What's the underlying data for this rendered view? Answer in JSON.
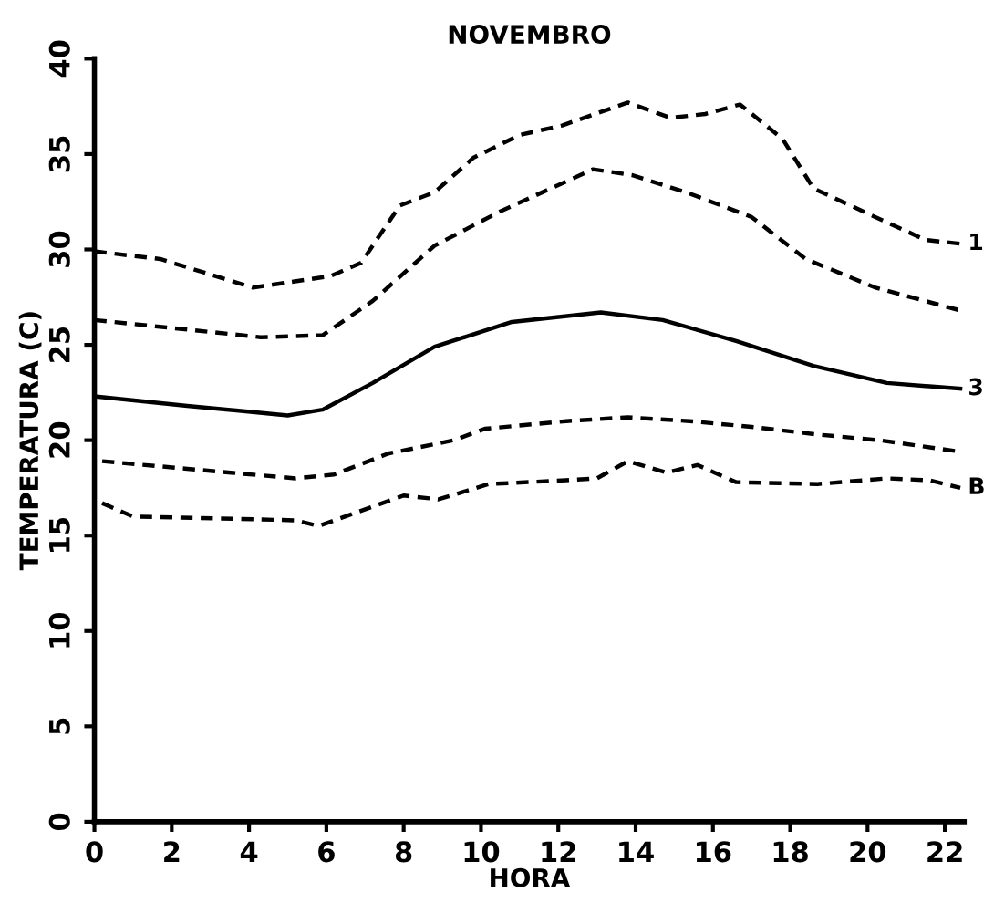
{
  "chart_data": {
    "type": "line",
    "title": "NOVEMBRO",
    "xlabel": "HORA",
    "ylabel": "TEMPERATURA (C)",
    "xlim": [
      0,
      22.5
    ],
    "xticks": [
      0,
      2,
      4,
      6,
      8,
      10,
      12,
      14,
      16,
      18,
      20,
      22
    ],
    "ylim": [
      0,
      40
    ],
    "yticks": [
      0,
      5,
      10,
      15,
      20,
      25,
      30,
      35,
      40
    ],
    "grid": false,
    "legend": false,
    "series": [
      {
        "name": "1",
        "color": "#000000",
        "line_style": "dashed",
        "x": [
          0,
          1.7,
          4.1,
          6.1,
          6.9,
          7.9,
          8.8,
          9.8,
          11,
          12.1,
          13.8,
          14.9,
          15.8,
          16.7,
          17.8,
          18.6,
          20.2,
          21.5,
          22.4
        ],
        "values": [
          29.9,
          29.5,
          28.0,
          28.6,
          29.3,
          32.3,
          33.0,
          34.8,
          36.0,
          36.5,
          37.7,
          36.9,
          37.1,
          37.6,
          35.8,
          33.2,
          31.7,
          30.5,
          30.3
        ]
      },
      {
        "color": "#000000",
        "line_style": "dashed",
        "x": [
          0,
          2.4,
          4.3,
          5.9,
          7.2,
          8.8,
          10.5,
          12.9,
          13.9,
          15.3,
          17,
          18.4,
          20.2,
          22.4
        ],
        "values": [
          26.3,
          25.8,
          25.4,
          25.5,
          27.3,
          30.2,
          32.0,
          34.2,
          33.9,
          33.0,
          31.7,
          29.5,
          28.0,
          26.8
        ]
      },
      {
        "name": "3",
        "color": "#000000",
        "line_style": "solid",
        "x": [
          0,
          2.4,
          5,
          5.9,
          7.2,
          8.8,
          10.8,
          13.1,
          14.7,
          16.6,
          18.6,
          20.5,
          22.4
        ],
        "values": [
          22.3,
          21.8,
          21.3,
          21.6,
          23.0,
          24.9,
          26.2,
          26.7,
          26.3,
          25.2,
          23.9,
          23.0,
          22.7
        ]
      },
      {
        "color": "#000000",
        "line_style": "dashed",
        "x": [
          0.2,
          2.4,
          5.2,
          6.2,
          7.6,
          9.3,
          10.1,
          12.2,
          13.8,
          15.4,
          17,
          18.7,
          20.3,
          22.4
        ],
        "values": [
          18.9,
          18.5,
          18.0,
          18.2,
          19.3,
          20.0,
          20.6,
          21.0,
          21.2,
          21.0,
          20.7,
          20.3,
          20.0,
          19.4
        ]
      },
      {
        "name": "B",
        "color": "#000000",
        "line_style": "dashed",
        "x": [
          0.2,
          1,
          3.2,
          5.2,
          5.8,
          8,
          8.9,
          10.2,
          12.2,
          13,
          13.8,
          14.8,
          15.6,
          16.6,
          18.7,
          20.5,
          21.6,
          22.4
        ],
        "values": [
          16.7,
          16.0,
          15.9,
          15.8,
          15.5,
          17.1,
          16.9,
          17.7,
          17.9,
          18.0,
          18.9,
          18.3,
          18.7,
          17.8,
          17.7,
          18.0,
          17.9,
          17.5
        ]
      }
    ]
  }
}
